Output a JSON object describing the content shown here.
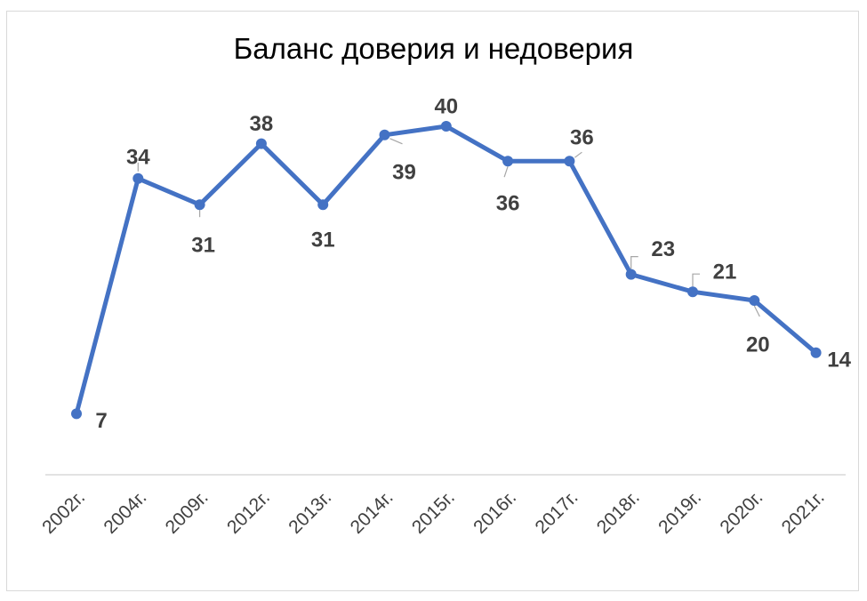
{
  "chart_data": {
    "type": "line",
    "title": "Баланс доверия и недоверия",
    "categories": [
      "2002г.",
      "2004г.",
      "2009г.",
      "2012г.",
      "2013г.",
      "2014г.",
      "2015г.",
      "2016г.",
      "2017г.",
      "2018г.",
      "2019г.",
      "2020г.",
      "2021г."
    ],
    "values": [
      7,
      34,
      31,
      38,
      31,
      39,
      40,
      36,
      36,
      23,
      21,
      20,
      14
    ],
    "xlabel": "",
    "ylabel": "",
    "ylim": [
      0,
      41
    ],
    "grid": false,
    "legend": "none",
    "data_labels": true,
    "colors": {
      "line": "#4472c4",
      "label": "#404040",
      "axis": "#d9d9d9"
    }
  }
}
